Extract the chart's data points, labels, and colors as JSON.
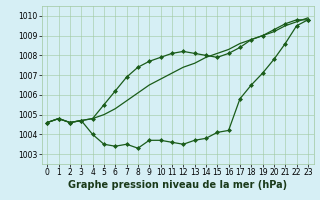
{
  "background_color": "#d6eff5",
  "grid_color": "#a0c8a0",
  "line_color": "#1a5c1a",
  "marker_color": "#1a5c1a",
  "xlabel": "Graphe pression niveau de la mer (hPa)",
  "xlabel_fontsize": 7,
  "tick_fontsize": 5.5,
  "ylim": [
    1002.5,
    1010.5
  ],
  "yticks": [
    1003,
    1004,
    1005,
    1006,
    1007,
    1008,
    1009,
    1010
  ],
  "xlim": [
    -0.5,
    23.5
  ],
  "xticks": [
    0,
    1,
    2,
    3,
    4,
    5,
    6,
    7,
    8,
    9,
    10,
    11,
    12,
    13,
    14,
    15,
    16,
    17,
    18,
    19,
    20,
    21,
    22,
    23
  ],
  "series": [
    {
      "y": [
        1004.6,
        1004.8,
        1004.6,
        1004.7,
        1004.0,
        1003.5,
        1003.4,
        1003.5,
        1003.3,
        1003.7,
        1003.7,
        1003.6,
        1003.5,
        1003.7,
        1003.8,
        1004.1,
        1004.2,
        1005.8,
        1006.5,
        1007.1,
        1007.8,
        1008.6,
        1009.5,
        1009.8
      ],
      "marker": "D",
      "markersize": 2.0,
      "linewidth": 0.9
    },
    {
      "y": [
        1004.6,
        1004.8,
        1004.6,
        1004.7,
        1004.8,
        1005.5,
        1006.2,
        1006.9,
        1007.4,
        1007.7,
        1007.9,
        1008.1,
        1008.2,
        1008.1,
        1008.0,
        1007.9,
        1008.1,
        1008.4,
        1008.8,
        1009.0,
        1009.3,
        1009.6,
        1009.8,
        1009.8
      ],
      "marker": "D",
      "markersize": 2.0,
      "linewidth": 0.9
    },
    {
      "y": [
        1004.6,
        1004.8,
        1004.6,
        1004.7,
        1004.8,
        1005.0,
        1005.3,
        1005.7,
        1006.1,
        1006.5,
        1006.8,
        1007.1,
        1007.4,
        1007.6,
        1007.9,
        1008.1,
        1008.3,
        1008.6,
        1008.8,
        1009.0,
        1009.2,
        1009.5,
        1009.7,
        1009.9
      ],
      "marker": null,
      "markersize": 0,
      "linewidth": 0.9
    }
  ]
}
